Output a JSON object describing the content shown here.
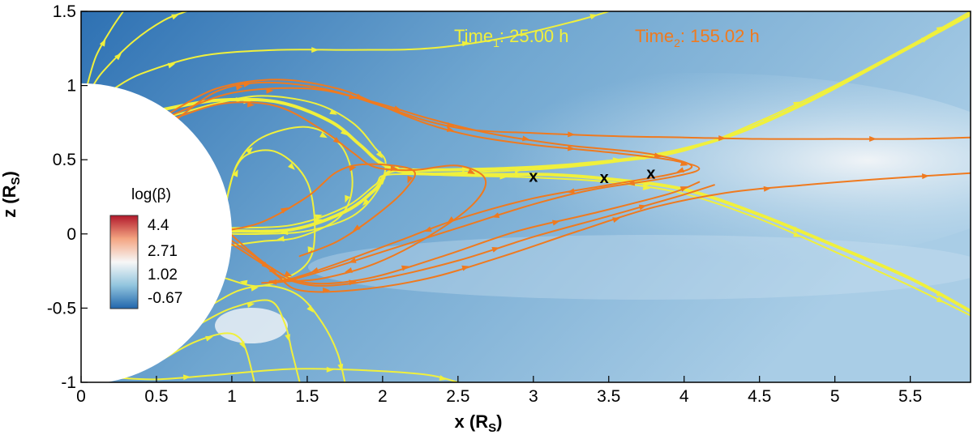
{
  "chart_data": {
    "type": "heatmap",
    "xlabel": "x (R",
    "xlabel_sub": "S",
    "ylabel": "z (R",
    "ylabel_sub": "S",
    "xlim": [
      0,
      5.9
    ],
    "ylim": [
      -1,
      1.5
    ],
    "xticks": [
      0,
      0.5,
      1,
      1.5,
      2,
      2.5,
      3,
      3.5,
      4,
      4.5,
      5,
      5.5
    ],
    "xtick_labels": [
      "0",
      "0.5",
      "1",
      "1.5",
      "2",
      "2.5",
      "3",
      "3.5",
      "4",
      "4.5",
      "5",
      "5.5"
    ],
    "yticks": [
      -1,
      -0.5,
      0,
      0.5,
      1,
      1.5
    ],
    "ytick_labels": [
      "-1",
      "-0.5",
      "0",
      "0.5",
      "1",
      "1.5"
    ],
    "colorbar": {
      "title": "log(β)",
      "levels": [
        4.4,
        2.71,
        1.02,
        -0.67
      ],
      "level_labels": [
        "4.4",
        "2.71",
        "1.02",
        "-0.67"
      ],
      "colors": [
        "#b2182b",
        "#f4a582",
        "#f7f7f7",
        "#92c5de",
        "#2166ac"
      ]
    },
    "annotations": [
      {
        "base": "Time",
        "sub": "1",
        "rest": ": 25.00 h",
        "color": "#f0f03c"
      },
      {
        "base": "Time",
        "sub": "2",
        "rest": ": 155.02 h",
        "color": "#ef7a1f"
      }
    ],
    "x_markers": [
      {
        "label": "x",
        "x": 3.0,
        "z": 0.39
      },
      {
        "label": "x",
        "x": 3.47,
        "z": 0.38
      },
      {
        "label": "x",
        "x": 3.78,
        "z": 0.41
      }
    ],
    "sun": {
      "center": [
        0,
        0
      ],
      "radius": 1
    },
    "series": [
      {
        "color": "#f0f03c",
        "width": 2,
        "points": [
          [
            0.95,
            0
          ],
          [
            0.98,
            0.3
          ],
          [
            1.08,
            0.52
          ],
          [
            1.3,
            0.55
          ],
          [
            1.5,
            0.35
          ],
          [
            1.55,
            0
          ],
          [
            1.48,
            -0.22
          ],
          [
            1.2,
            -0.35
          ],
          [
            0.96,
            -0.3
          ]
        ]
      },
      {
        "color": "#f0f03c",
        "width": 2,
        "points": [
          [
            0.97,
            0.25
          ],
          [
            1.04,
            0.48
          ],
          [
            1.2,
            0.65
          ],
          [
            1.5,
            0.72
          ],
          [
            1.72,
            0.6
          ],
          [
            1.8,
            0.35
          ],
          [
            1.72,
            0.12
          ],
          [
            1.45,
            -0.02
          ],
          [
            1.2,
            -0.05
          ],
          [
            0.98,
            -0.08
          ]
        ]
      },
      {
        "color": "#f0f03c",
        "width": 2,
        "points": [
          [
            0.62,
            0.8
          ],
          [
            0.9,
            0.88
          ],
          [
            1.2,
            0.93
          ],
          [
            1.55,
            0.88
          ],
          [
            1.8,
            0.75
          ],
          [
            1.95,
            0.58
          ],
          [
            2.02,
            0.48
          ],
          [
            1.97,
            0.3
          ],
          [
            1.8,
            0.12
          ],
          [
            1.5,
            0.02
          ],
          [
            1.2,
            0
          ],
          [
            0.98,
            0
          ]
        ]
      },
      {
        "color": "#f0f03c",
        "width": 4,
        "points": [
          [
            0.55,
            0.84
          ],
          [
            0.9,
            0.9
          ],
          [
            1.3,
            0.89
          ],
          [
            1.65,
            0.76
          ],
          [
            1.85,
            0.6
          ],
          [
            2.0,
            0.47
          ],
          [
            2.2,
            0.41
          ],
          [
            2.7,
            0.4
          ],
          [
            3.1,
            0.4
          ],
          [
            3.5,
            0.37
          ],
          [
            4.0,
            0.3
          ],
          [
            4.5,
            0.13
          ],
          [
            5.0,
            -0.08
          ],
          [
            5.5,
            -0.3
          ],
          [
            5.9,
            -0.52
          ]
        ]
      },
      {
        "color": "#f0f03c",
        "width": 2,
        "points": [
          [
            0.55,
            0.84
          ],
          [
            0.9,
            0.9
          ],
          [
            1.3,
            0.89
          ],
          [
            1.65,
            0.76
          ],
          [
            1.85,
            0.6
          ],
          [
            2.0,
            0.47
          ],
          [
            2.2,
            0.41
          ],
          [
            2.7,
            0.42
          ],
          [
            3.1,
            0.44
          ],
          [
            3.5,
            0.48
          ],
          [
            4.0,
            0.56
          ],
          [
            4.5,
            0.76
          ],
          [
            5.0,
            1.0
          ],
          [
            5.5,
            1.27
          ],
          [
            5.9,
            1.5
          ]
        ]
      },
      {
        "color": "#f0f03c",
        "width": 4,
        "points": [
          [
            0.98,
            0.02
          ],
          [
            1.4,
            0.03
          ],
          [
            1.75,
            0.15
          ],
          [
            1.95,
            0.3
          ],
          [
            2.05,
            0.42
          ],
          [
            2.3,
            0.43
          ],
          [
            2.8,
            0.44
          ],
          [
            3.3,
            0.47
          ],
          [
            3.8,
            0.53
          ],
          [
            4.3,
            0.66
          ],
          [
            4.8,
            0.88
          ],
          [
            5.3,
            1.15
          ],
          [
            5.9,
            1.48
          ]
        ]
      },
      {
        "color": "#f0f03c",
        "width": 2,
        "points": [
          [
            0.98,
            0.04
          ],
          [
            1.4,
            0.06
          ],
          [
            1.75,
            0.18
          ],
          [
            1.95,
            0.33
          ],
          [
            2.05,
            0.4
          ],
          [
            2.6,
            0.39
          ],
          [
            3.0,
            0.38
          ],
          [
            3.5,
            0.35
          ],
          [
            4.0,
            0.27
          ],
          [
            4.5,
            0.1
          ],
          [
            5.0,
            -0.12
          ],
          [
            5.5,
            -0.35
          ],
          [
            5.9,
            -0.55
          ]
        ]
      },
      {
        "color": "#f0f03c",
        "width": 2,
        "points": [
          [
            0.22,
            0.98
          ],
          [
            0.4,
            1.08
          ],
          [
            0.8,
            1.2
          ],
          [
            1.3,
            1.24
          ],
          [
            1.8,
            1.24
          ],
          [
            2.3,
            1.25
          ],
          [
            2.8,
            1.32
          ],
          [
            3.3,
            1.44
          ],
          [
            3.5,
            1.5
          ]
        ]
      },
      {
        "color": "#f0f03c",
        "width": 2,
        "points": [
          [
            0.08,
            1.0
          ],
          [
            0.15,
            1.1
          ],
          [
            0.35,
            1.3
          ],
          [
            0.55,
            1.44
          ],
          [
            0.7,
            1.5
          ]
        ]
      },
      {
        "color": "#f0f03c",
        "width": 2,
        "points": [
          [
            0.04,
            1.0
          ],
          [
            0.1,
            1.2
          ],
          [
            0.2,
            1.38
          ],
          [
            0.28,
            1.5
          ]
        ]
      },
      {
        "color": "#f0f03c",
        "width": 2,
        "points": [
          [
            0.55,
            -0.84
          ],
          [
            0.75,
            -0.73
          ],
          [
            0.95,
            -0.67
          ],
          [
            1.05,
            -0.7
          ],
          [
            1.1,
            -0.8
          ],
          [
            1.15,
            -1.0
          ]
        ]
      },
      {
        "color": "#f0f03c",
        "width": 2,
        "points": [
          [
            0.8,
            -0.6
          ],
          [
            1.0,
            -0.5
          ],
          [
            1.25,
            -0.45
          ],
          [
            1.35,
            -0.6
          ],
          [
            1.4,
            -0.8
          ],
          [
            1.45,
            -1.0
          ]
        ]
      },
      {
        "color": "#f0f03c",
        "width": 2,
        "points": [
          [
            0.88,
            -0.47
          ],
          [
            1.05,
            -0.38
          ],
          [
            1.25,
            -0.35
          ],
          [
            1.45,
            -0.42
          ],
          [
            1.6,
            -0.6
          ],
          [
            1.7,
            -0.8
          ],
          [
            1.75,
            -1.0
          ]
        ]
      },
      {
        "color": "#f0f03c",
        "width": 2,
        "points": [
          [
            0.25,
            -0.97
          ],
          [
            0.5,
            -0.98
          ],
          [
            0.9,
            -0.95
          ],
          [
            1.4,
            -0.91
          ],
          [
            1.9,
            -0.92
          ],
          [
            2.3,
            -0.95
          ],
          [
            2.5,
            -1.0
          ]
        ]
      },
      {
        "color": "#ef7a1f",
        "width": 2,
        "points": [
          [
            0.63,
            0.77
          ],
          [
            0.9,
            0.96
          ],
          [
            1.2,
            1.02
          ],
          [
            1.6,
            0.98
          ],
          [
            2.0,
            0.86
          ],
          [
            2.3,
            0.76
          ],
          [
            2.6,
            0.7
          ],
          [
            3.0,
            0.68
          ],
          [
            3.5,
            0.66
          ],
          [
            4.0,
            0.65
          ],
          [
            4.5,
            0.64
          ],
          [
            5.0,
            0.64
          ],
          [
            5.5,
            0.64
          ],
          [
            5.9,
            0.65
          ]
        ]
      },
      {
        "color": "#ef7a1f",
        "width": 2,
        "points": [
          [
            0.58,
            0.81
          ],
          [
            0.9,
            0.98
          ],
          [
            1.3,
            1.04
          ],
          [
            1.7,
            0.98
          ],
          [
            2.0,
            0.86
          ],
          [
            2.3,
            0.74
          ],
          [
            2.6,
            0.66
          ],
          [
            3.0,
            0.6
          ],
          [
            3.5,
            0.55
          ],
          [
            3.9,
            0.5
          ],
          [
            4.1,
            0.44
          ],
          [
            3.9,
            0.38
          ],
          [
            3.4,
            0.3
          ],
          [
            3.0,
            0.2
          ],
          [
            2.5,
            0.04
          ],
          [
            2.0,
            -0.12
          ],
          [
            1.6,
            -0.25
          ],
          [
            1.35,
            -0.32
          ],
          [
            1.2,
            -0.33
          ]
        ]
      },
      {
        "color": "#ef7a1f",
        "width": 2,
        "points": [
          [
            0.6,
            0.8
          ],
          [
            1.0,
            0.95
          ],
          [
            1.5,
            0.98
          ],
          [
            1.9,
            0.9
          ],
          [
            2.3,
            0.78
          ],
          [
            2.7,
            0.68
          ],
          [
            3.2,
            0.6
          ],
          [
            3.7,
            0.55
          ],
          [
            3.95,
            0.5
          ],
          [
            4.05,
            0.45
          ],
          [
            3.9,
            0.4
          ],
          [
            3.5,
            0.33
          ],
          [
            3.0,
            0.24
          ],
          [
            2.5,
            0.1
          ],
          [
            2.1,
            -0.05
          ],
          [
            1.7,
            -0.2
          ],
          [
            1.4,
            -0.3
          ],
          [
            1.25,
            -0.32
          ]
        ]
      },
      {
        "color": "#ef7a1f",
        "width": 2,
        "points": [
          [
            0.62,
            0.78
          ],
          [
            0.95,
            0.88
          ],
          [
            1.3,
            0.86
          ],
          [
            1.6,
            0.7
          ],
          [
            1.8,
            0.55
          ],
          [
            1.95,
            0.45
          ],
          [
            2.2,
            0.43
          ],
          [
            2.5,
            0.46
          ],
          [
            2.68,
            0.37
          ],
          [
            2.6,
            0.2
          ],
          [
            2.3,
            -0.02
          ],
          [
            1.95,
            -0.2
          ],
          [
            1.6,
            -0.3
          ],
          [
            1.35,
            -0.32
          ]
        ]
      },
      {
        "color": "#ef7a1f",
        "width": 2,
        "points": [
          [
            0.95,
            0.02
          ],
          [
            1.2,
            0.08
          ],
          [
            1.5,
            0.25
          ],
          [
            1.7,
            0.42
          ],
          [
            1.9,
            0.47
          ],
          [
            2.2,
            0.43
          ],
          [
            2.15,
            0.3
          ],
          [
            1.95,
            0.12
          ],
          [
            1.7,
            -0.05
          ],
          [
            1.45,
            -0.15
          ]
        ]
      },
      {
        "color": "#ef7a1f",
        "width": 2,
        "points": [
          [
            0.96,
            -0.02
          ],
          [
            1.15,
            -0.15
          ],
          [
            1.3,
            -0.28
          ],
          [
            1.45,
            -0.38
          ],
          [
            1.8,
            -0.38
          ],
          [
            2.3,
            -0.3
          ],
          [
            2.8,
            -0.15
          ],
          [
            3.3,
            0.02
          ],
          [
            3.8,
            0.18
          ],
          [
            4.3,
            0.28
          ],
          [
            4.8,
            0.33
          ],
          [
            5.3,
            0.37
          ],
          [
            5.9,
            0.41
          ]
        ]
      },
      {
        "color": "#ef7a1f",
        "width": 2,
        "points": [
          [
            0.97,
            -0.05
          ],
          [
            1.2,
            -0.2
          ],
          [
            1.35,
            -0.3
          ],
          [
            1.6,
            -0.35
          ],
          [
            2.0,
            -0.3
          ],
          [
            2.5,
            -0.18
          ],
          [
            3.0,
            -0.02
          ],
          [
            3.5,
            0.12
          ],
          [
            3.95,
            0.25
          ],
          [
            4.2,
            0.33
          ]
        ]
      },
      {
        "color": "#ef7a1f",
        "width": 2,
        "points": [
          [
            0.99,
            0.0
          ],
          [
            1.25,
            -0.22
          ],
          [
            1.5,
            -0.33
          ],
          [
            1.9,
            -0.3
          ],
          [
            2.4,
            -0.15
          ],
          [
            2.9,
            0.02
          ],
          [
            3.4,
            0.14
          ],
          [
            3.9,
            0.27
          ],
          [
            4.1,
            0.35
          ]
        ]
      }
    ]
  }
}
